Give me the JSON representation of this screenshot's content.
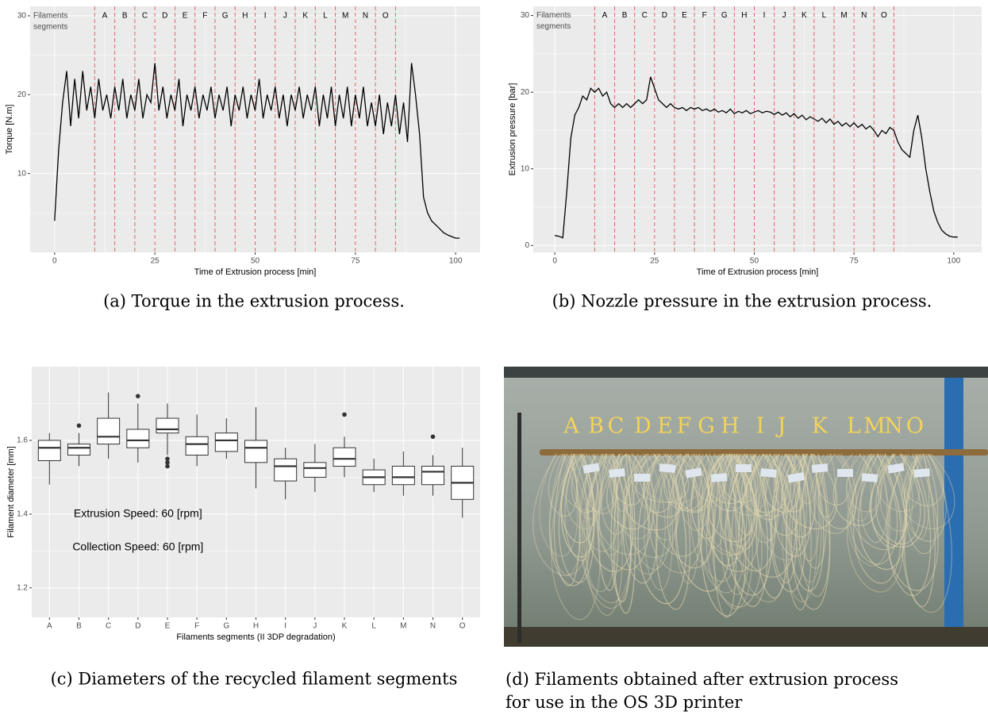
{
  "chart_data": [
    {
      "type": "line",
      "caption": "(a) Torque in the extrusion process.",
      "xlabel": "Time of Extrusion process [min]",
      "ylabel": "Torque [N.m]",
      "segment_title": [
        "Filaments",
        "segments"
      ],
      "segments": [
        "A",
        "B",
        "C",
        "D",
        "E",
        "F",
        "G",
        "H",
        "I",
        "J",
        "K",
        "L",
        "M",
        "N",
        "O"
      ],
      "segment_boundaries": [
        10,
        15,
        20,
        25,
        30,
        35,
        40,
        45,
        50,
        55,
        60,
        65,
        70,
        75,
        80,
        85
      ],
      "boundary_color": "#e06666",
      "color": "#000000",
      "grid": true,
      "x": [
        0,
        1,
        2,
        3,
        4,
        5,
        6,
        7,
        8,
        9,
        10,
        11,
        12,
        13,
        14,
        15,
        16,
        17,
        18,
        19,
        20,
        21,
        22,
        23,
        24,
        25,
        26,
        27,
        28,
        29,
        30,
        31,
        32,
        33,
        34,
        35,
        36,
        37,
        38,
        39,
        40,
        41,
        42,
        43,
        44,
        45,
        46,
        47,
        48,
        49,
        50,
        51,
        52,
        53,
        54,
        55,
        56,
        57,
        58,
        59,
        60,
        61,
        62,
        63,
        64,
        65,
        66,
        67,
        68,
        69,
        70,
        71,
        72,
        73,
        74,
        75,
        76,
        77,
        78,
        79,
        80,
        81,
        82,
        83,
        84,
        85,
        86,
        87,
        88,
        89,
        90,
        91,
        92,
        93,
        94,
        95,
        96,
        97,
        98,
        99,
        100,
        101
      ],
      "values": [
        4,
        13,
        19,
        23,
        16,
        22,
        17,
        23,
        18,
        21,
        17,
        22,
        18,
        20,
        17,
        21,
        18,
        22,
        17,
        20,
        18,
        22,
        17,
        20,
        19,
        24,
        18,
        21,
        17,
        20,
        18,
        22,
        16,
        20,
        18,
        21,
        17,
        20,
        18,
        21,
        17,
        20,
        18,
        21,
        16,
        20,
        18,
        21,
        17,
        20,
        18,
        22,
        17,
        20,
        18,
        21,
        17,
        20,
        16,
        20,
        18,
        21,
        17,
        20,
        18,
        21,
        16,
        20,
        17,
        21,
        16,
        20,
        17,
        21,
        16,
        20,
        17,
        21,
        16,
        19,
        16,
        20,
        15,
        19,
        16,
        20,
        15,
        19,
        14,
        24,
        20,
        15,
        7,
        5,
        4,
        3.5,
        3,
        2.5,
        2.2,
        2,
        1.8,
        1.8
      ],
      "xlim": [
        -6.1,
        106.1
      ],
      "ylim": [
        0,
        31.2
      ],
      "xticks": [
        0,
        25,
        50,
        75,
        100
      ],
      "yticks": [
        10,
        20,
        30
      ]
    },
    {
      "type": "line",
      "caption": "(b) Nozzle pressure in the extrusion process.",
      "xlabel": "Time of Extrusion process [min]",
      "ylabel": "Extrusion pressure [bar]",
      "segment_title": [
        "Filaments",
        "segments"
      ],
      "segments": [
        "A",
        "B",
        "C",
        "D",
        "E",
        "F",
        "G",
        "H",
        "I",
        "J",
        "K",
        "L",
        "M",
        "N",
        "O"
      ],
      "segment_boundaries": [
        10,
        15,
        20,
        25,
        30,
        35,
        40,
        45,
        50,
        55,
        60,
        65,
        70,
        75,
        80,
        85
      ],
      "boundary_color": "#e06666",
      "color": "#000000",
      "grid": true,
      "x": [
        0,
        1,
        2,
        3,
        4,
        5,
        6,
        7,
        8,
        9,
        10,
        11,
        12,
        13,
        14,
        15,
        16,
        17,
        18,
        19,
        20,
        21,
        22,
        23,
        24,
        25,
        26,
        27,
        28,
        29,
        30,
        31,
        32,
        33,
        34,
        35,
        36,
        37,
        38,
        39,
        40,
        41,
        42,
        43,
        44,
        45,
        46,
        47,
        48,
        49,
        50,
        51,
        52,
        53,
        54,
        55,
        56,
        57,
        58,
        59,
        60,
        61,
        62,
        63,
        64,
        65,
        66,
        67,
        68,
        69,
        70,
        71,
        72,
        73,
        74,
        75,
        76,
        77,
        78,
        79,
        80,
        81,
        82,
        83,
        84,
        85,
        86,
        87,
        88,
        89,
        90,
        91,
        92,
        93,
        94,
        95,
        96,
        97,
        98,
        99,
        100,
        101
      ],
      "values": [
        1.3,
        1.2,
        1.0,
        7,
        14,
        17,
        18,
        19.5,
        19,
        20.5,
        20,
        20.5,
        19.5,
        20,
        18.5,
        18,
        18.5,
        18,
        18.5,
        18,
        18.5,
        19,
        18.5,
        19,
        22,
        20.5,
        19,
        18.5,
        18,
        18.5,
        18,
        17.8,
        18,
        17.6,
        18,
        17.8,
        18,
        17.6,
        17.8,
        17.5,
        17.8,
        17.4,
        17.6,
        17.3,
        17.8,
        17.2,
        17.5,
        17.3,
        17.6,
        17.2,
        17.4,
        17.6,
        17.3,
        17.5,
        17.4,
        17.1,
        17.4,
        17.0,
        17.3,
        16.8,
        17.2,
        16.6,
        17.0,
        16.4,
        16.8,
        16.5,
        16.2,
        16.6,
        16.0,
        16.5,
        15.8,
        16.2,
        15.6,
        16.0,
        15.5,
        16.0,
        15.4,
        15.8,
        15.2,
        15.6,
        15.0,
        14.2,
        15.0,
        14.6,
        15.4,
        15.0,
        13.5,
        12.5,
        12.0,
        11.5,
        15,
        17,
        14,
        10,
        7,
        4.5,
        3,
        2,
        1.5,
        1.2,
        1.1,
        1.1
      ],
      "xlim": [
        -5.4,
        107
      ],
      "ylim": [
        -0.9,
        31.2
      ],
      "xticks": [
        0,
        25,
        50,
        75,
        100
      ],
      "yticks": [
        0,
        10,
        20,
        30
      ]
    },
    {
      "type": "box",
      "caption": "(c) Diameters of the recycled filament segments",
      "xlabel": "Filaments segments  (II 3DP degradation)",
      "ylabel": "Filament diameter [mm]",
      "categories": [
        "A",
        "B",
        "C",
        "D",
        "E",
        "F",
        "G",
        "H",
        "I",
        "J",
        "K",
        "L",
        "M",
        "N",
        "O"
      ],
      "whisker_low": [
        1.48,
        1.53,
        1.55,
        1.54,
        1.56,
        1.53,
        1.55,
        1.47,
        1.44,
        1.46,
        1.5,
        1.46,
        1.45,
        1.45,
        1.39
      ],
      "q1": [
        1.545,
        1.56,
        1.59,
        1.58,
        1.62,
        1.56,
        1.57,
        1.54,
        1.49,
        1.5,
        1.53,
        1.48,
        1.48,
        1.48,
        1.44
      ],
      "median": [
        1.58,
        1.58,
        1.61,
        1.6,
        1.63,
        1.59,
        1.6,
        1.58,
        1.53,
        1.525,
        1.55,
        1.5,
        1.5,
        1.515,
        1.485
      ],
      "q3": [
        1.6,
        1.59,
        1.66,
        1.63,
        1.66,
        1.61,
        1.62,
        1.6,
        1.55,
        1.54,
        1.58,
        1.52,
        1.53,
        1.53,
        1.53
      ],
      "whisker_high": [
        1.62,
        1.62,
        1.73,
        1.7,
        1.7,
        1.67,
        1.66,
        1.69,
        1.58,
        1.59,
        1.61,
        1.55,
        1.57,
        1.56,
        1.58
      ],
      "outliers": [
        [],
        [
          1.64
        ],
        [],
        [
          1.72
        ],
        [
          1.53,
          1.54,
          1.55
        ],
        [],
        [],
        [],
        [],
        [],
        [
          1.67
        ],
        [],
        [],
        [
          1.61
        ],
        []
      ],
      "annotations": [
        {
          "text": "Extrusion Speed: 60 [rpm]",
          "x": 4,
          "y": 1.4
        },
        {
          "text": "Collection Speed: 60 [rpm]",
          "x": 4,
          "y": 1.31
        }
      ],
      "color": "#ffffff",
      "grid": true,
      "ylim": [
        1.12,
        1.8
      ],
      "yticks": [
        1.2,
        1.4,
        1.6
      ]
    }
  ],
  "photo": {
    "letters": [
      "A",
      "B",
      "C",
      "D",
      "E",
      "F",
      "G",
      "H",
      "I",
      "J",
      "K",
      "L",
      "M",
      "N",
      "O"
    ],
    "caption": "(d) Filaments obtained after extrusion process for use in the OS 3D printer"
  }
}
